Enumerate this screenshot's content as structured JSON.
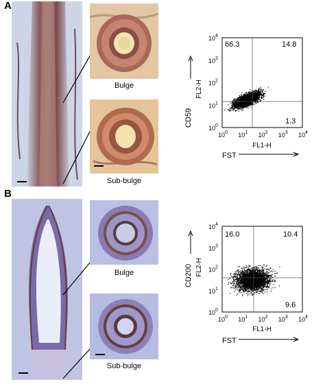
{
  "panels": [
    {
      "letter": "A",
      "captions": {
        "top": "Bulge",
        "bottom": "Sub-bulge"
      },
      "stain": "DAB-pink",
      "colors": {
        "bg": "#e6c9a0",
        "tissue": "#9b5a48",
        "ring_outer": "#b06a50",
        "ring_inner": "#f4e6b8"
      },
      "flow": {
        "ylabel_outer": "CD59",
        "ylabel_inner": "FL2-H",
        "xlabel_inner": "FL1-H",
        "xlabel_outer": "FST",
        "quadrants": {
          "tl": "66.3",
          "tr": "14.8",
          "br": "1.3"
        },
        "ticks": [
          "10",
          "10",
          "10",
          "10",
          "10"
        ],
        "exponents": [
          "0",
          "1",
          "2",
          "3",
          "4"
        ]
      }
    },
    {
      "letter": "B",
      "captions": {
        "top": "Bulge",
        "bottom": "Sub-bulge"
      },
      "stain": "DAB-blue",
      "colors": {
        "bg": "#b8bfe0",
        "tissue": "#6a6aa8",
        "ring_outer": "#7a4a40",
        "ring_inner": "#d8dcf0"
      },
      "flow": {
        "ylabel_outer": "CD200",
        "ylabel_inner": "FL2-H",
        "xlabel_inner": "FL1-H",
        "xlabel_outer": "FST",
        "quadrants": {
          "tl": "16.0",
          "tr": "10.4",
          "br": "9.6"
        },
        "ticks": [
          "10",
          "10",
          "10",
          "10",
          "10"
        ],
        "exponents": [
          "0",
          "1",
          "2",
          "3",
          "4"
        ]
      }
    }
  ]
}
